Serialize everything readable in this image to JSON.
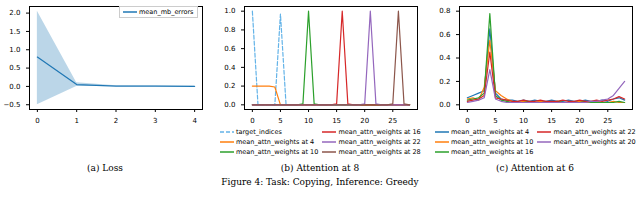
{
  "caption": "Figure 4: Task: Copying, Inference: Greedy",
  "chart_data": [
    {
      "type": "line",
      "title": "(a) Loss",
      "legend": "upper right",
      "x": [
        0,
        1,
        2,
        3,
        4
      ],
      "xlim": [
        -0.2,
        4.2
      ],
      "xticks": [
        0,
        1,
        2,
        3,
        4
      ],
      "ylim": [
        -0.63,
        2.18
      ],
      "yticks": [
        {
          "value": -0.5,
          "label": "−0.5"
        },
        {
          "value": 0,
          "label": "0.0"
        },
        {
          "value": 0.5,
          "label": "0.5"
        },
        {
          "value": 1,
          "label": "1.0"
        },
        {
          "value": 1.5,
          "label": "1.5"
        },
        {
          "value": 2,
          "label": "2.0"
        }
      ],
      "series": [
        {
          "name": "mean_mb_errors",
          "color": "#1f77b4",
          "values": [
            0.8,
            0.05,
            0.01,
            0.005,
            0.003
          ],
          "lower": [
            -0.5,
            0.0,
            0.0,
            0.0,
            0.0
          ],
          "upper": [
            2.05,
            0.1,
            0.02,
            0.01,
            0.006
          ]
        }
      ]
    },
    {
      "type": "line",
      "title": "(b) Attention at 8",
      "legend": "below",
      "x": [
        0,
        1,
        2,
        3,
        4,
        5,
        6,
        7,
        8,
        9,
        10,
        11,
        12,
        13,
        14,
        15,
        16,
        17,
        18,
        19,
        20,
        21,
        22,
        23,
        24,
        25,
        26,
        27,
        28
      ],
      "xlim": [
        -1.4,
        29.4
      ],
      "xticks": [
        0,
        5,
        10,
        15,
        20,
        25
      ],
      "ylim": [
        -0.05,
        1.05
      ],
      "yticks": [
        {
          "value": 0,
          "label": "0.0"
        },
        {
          "value": 0.2,
          "label": "0.2"
        },
        {
          "value": 0.4,
          "label": "0.4"
        },
        {
          "value": 0.6,
          "label": "0.6"
        },
        {
          "value": 0.8,
          "label": "0.8"
        },
        {
          "value": 1,
          "label": "1.0"
        }
      ],
      "series": [
        {
          "name": "target_indices",
          "color": "#63b3e8",
          "line_style": "dashed",
          "values": [
            1.0,
            0,
            0,
            0,
            0,
            0.97,
            0,
            0,
            0,
            0,
            0,
            0,
            0,
            0,
            0,
            0,
            0,
            0,
            0,
            0,
            0,
            0,
            0,
            0,
            0,
            0,
            0,
            0,
            0
          ]
        },
        {
          "name": "mean_attn_weights at 4",
          "color": "#ff7f0e",
          "values": [
            0.2,
            0.2,
            0.2,
            0.2,
            0.19,
            0.0,
            0,
            0,
            0,
            0,
            0,
            0,
            0,
            0,
            0,
            0,
            0,
            0,
            0,
            0,
            0,
            0,
            0,
            0,
            0,
            0,
            0,
            0,
            0
          ]
        },
        {
          "name": "mean_attn_weights at 10",
          "color": "#2ca02c",
          "values": [
            0,
            0,
            0,
            0,
            0,
            0,
            0,
            0,
            0,
            0.01,
            1.0,
            0.01,
            0,
            0,
            0,
            0,
            0,
            0,
            0,
            0,
            0,
            0,
            0,
            0,
            0,
            0,
            0,
            0,
            0
          ]
        },
        {
          "name": "mean_attn_weights at 16",
          "color": "#d62728",
          "values": [
            0,
            0,
            0,
            0,
            0,
            0,
            0,
            0,
            0,
            0,
            0,
            0,
            0,
            0,
            0,
            0.01,
            1.0,
            0.01,
            0,
            0,
            0,
            0,
            0,
            0,
            0,
            0,
            0,
            0,
            0
          ]
        },
        {
          "name": "mean_attn_weights at 22",
          "color": "#9467bd",
          "values": [
            0,
            0,
            0,
            0,
            0,
            0,
            0,
            0,
            0,
            0,
            0,
            0,
            0,
            0,
            0,
            0,
            0,
            0,
            0,
            0,
            0.01,
            1.0,
            0.01,
            0,
            0,
            0,
            0,
            0,
            0
          ]
        },
        {
          "name": "mean_attn_weights at 28",
          "color": "#8c564b",
          "values": [
            0,
            0,
            0,
            0,
            0,
            0,
            0,
            0,
            0,
            0,
            0,
            0,
            0,
            0,
            0,
            0,
            0,
            0,
            0,
            0,
            0,
            0,
            0,
            0,
            0,
            0.01,
            1.0,
            0.01,
            0
          ]
        }
      ]
    },
    {
      "type": "line",
      "title": "(c) Attention at 6",
      "legend": "below",
      "x": [
        0,
        1,
        2,
        3,
        4,
        5,
        6,
        7,
        8,
        9,
        10,
        11,
        12,
        13,
        14,
        15,
        16,
        17,
        18,
        19,
        20,
        21,
        22,
        23,
        24,
        25,
        26,
        27,
        28
      ],
      "xlim": [
        -1.4,
        29.4
      ],
      "xticks": [
        0,
        5,
        10,
        15,
        20,
        25
      ],
      "ylim": [
        -0.04,
        0.84
      ],
      "yticks": [
        {
          "value": 0,
          "label": "0.0"
        },
        {
          "value": 0.2,
          "label": "0.2"
        },
        {
          "value": 0.4,
          "label": "0.4"
        },
        {
          "value": 0.6,
          "label": "0.6"
        },
        {
          "value": 0.8,
          "label": "0.8"
        }
      ],
      "series": [
        {
          "name": "mean_attn_weights at 4",
          "color": "#1f77b4",
          "values": [
            0.06,
            0.08,
            0.1,
            0.12,
            0.65,
            0.1,
            0.05,
            0.04,
            0.04,
            0.03,
            0.04,
            0.03,
            0.04,
            0.03,
            0.03,
            0.04,
            0.03,
            0.03,
            0.04,
            0.03,
            0.03,
            0.04,
            0.03,
            0.03,
            0.04,
            0.03,
            0.05,
            0.06,
            0.04
          ]
        },
        {
          "name": "mean_attn_weights at 10",
          "color": "#ff7f0e",
          "values": [
            0.05,
            0.06,
            0.04,
            0.15,
            0.55,
            0.12,
            0.08,
            0.05,
            0.03,
            0.02,
            0.03,
            0.02,
            0.02,
            0.03,
            0.02,
            0.02,
            0.03,
            0.02,
            0.02,
            0.02,
            0.03,
            0.02,
            0.02,
            0.03,
            0.02,
            0.02,
            0.03,
            0.02,
            0.02
          ]
        },
        {
          "name": "mean_attn_weights at 16",
          "color": "#2ca02c",
          "values": [
            0.04,
            0.05,
            0.06,
            0.1,
            0.78,
            0.08,
            0.04,
            0.03,
            0.02,
            0.02,
            0.02,
            0.03,
            0.02,
            0.02,
            0.02,
            0.02,
            0.03,
            0.02,
            0.02,
            0.02,
            0.02,
            0.03,
            0.02,
            0.02,
            0.02,
            0.02,
            0.02,
            0.03,
            0.02
          ]
        },
        {
          "name": "mean_attn_weights at 22",
          "color": "#d62728",
          "values": [
            0.03,
            0.04,
            0.05,
            0.08,
            0.45,
            0.06,
            0.05,
            0.04,
            0.03,
            0.03,
            0.04,
            0.03,
            0.03,
            0.04,
            0.03,
            0.03,
            0.03,
            0.04,
            0.03,
            0.03,
            0.04,
            0.03,
            0.03,
            0.04,
            0.03,
            0.04,
            0.05,
            0.07,
            0.05
          ]
        },
        {
          "name": "mean_attn_weights at 20",
          "color": "#9467bd",
          "values": [
            0.02,
            0.03,
            0.04,
            0.06,
            0.3,
            0.05,
            0.03,
            0.02,
            0.02,
            0.02,
            0.02,
            0.02,
            0.02,
            0.02,
            0.02,
            0.02,
            0.02,
            0.02,
            0.02,
            0.02,
            0.02,
            0.02,
            0.03,
            0.03,
            0.04,
            0.05,
            0.08,
            0.14,
            0.2
          ]
        }
      ]
    }
  ]
}
